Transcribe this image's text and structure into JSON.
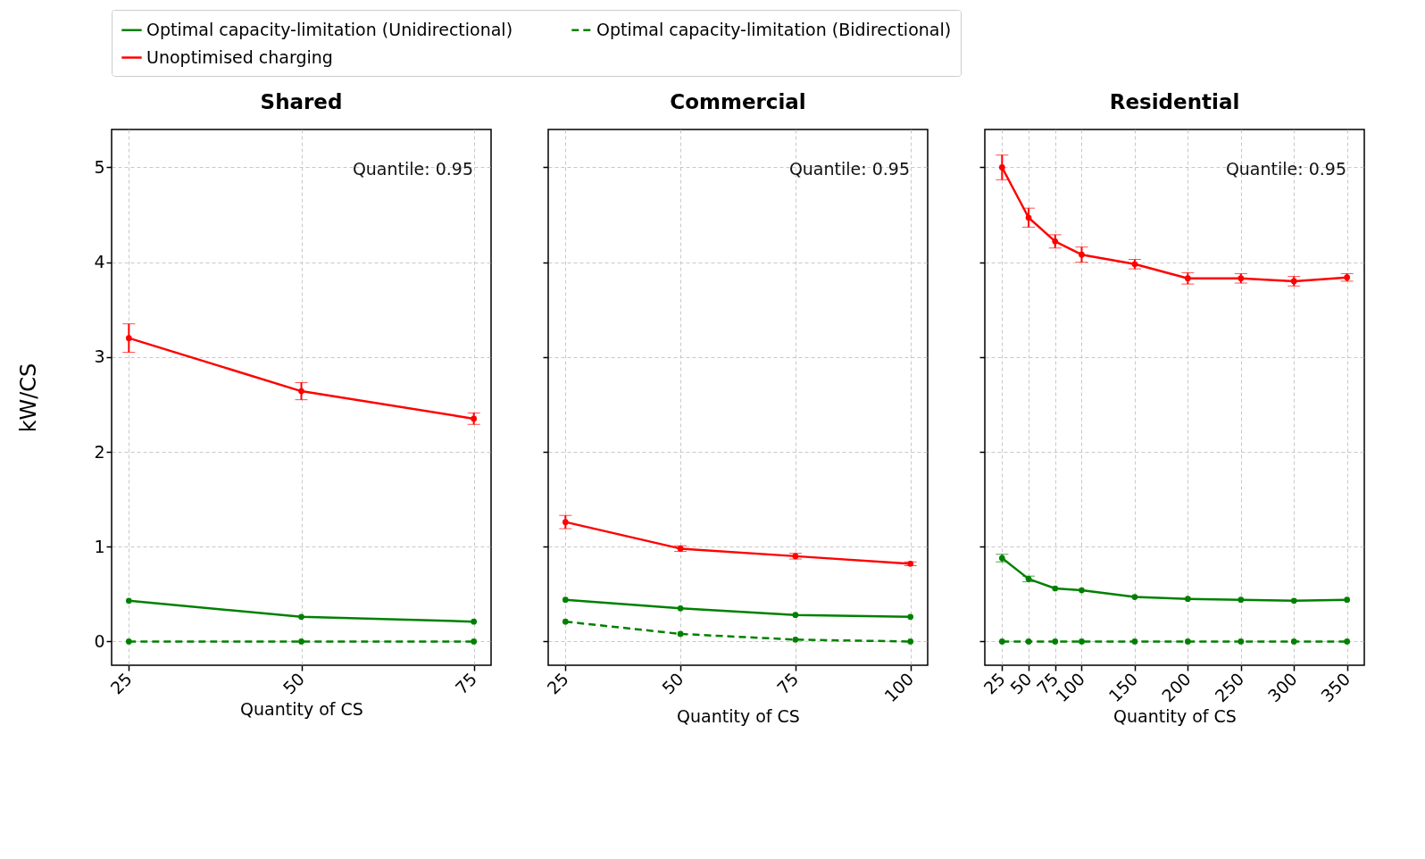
{
  "chart_data": [
    {
      "type": "line",
      "title": "Shared",
      "xlabel": "Quantity of CS",
      "ylabel": "kW/CS",
      "x": [
        25,
        50,
        75
      ],
      "xlim": [
        22.5,
        77.5
      ],
      "xticks": [
        25,
        50,
        75
      ],
      "ylim": [
        -0.25,
        5.4
      ],
      "yticks": [
        0,
        1,
        2,
        3,
        4,
        5
      ],
      "grid": true,
      "marker": "circle",
      "legend": "top",
      "annotations": [
        "Quantile: 0.95"
      ],
      "series": [
        {
          "name": "Optimal capacity-limitation (Unidirectional)",
          "color": "#008000",
          "line_style": "solid",
          "values": [
            0.43,
            0.26,
            0.21
          ]
        },
        {
          "name": "Optimal capacity-limitation (Bidirectional)",
          "color": "#008000",
          "line_style": "dashed",
          "values": [
            0,
            0,
            0
          ]
        },
        {
          "name": "Unoptimised charging",
          "color": "#ff0000",
          "line_style": "solid",
          "values": [
            3.2,
            2.64,
            2.35
          ],
          "errors": [
            0.15,
            0.09,
            0.06
          ]
        }
      ]
    },
    {
      "type": "line",
      "title": "Commercial",
      "xlabel": "Quantity of CS",
      "x": [
        25,
        50,
        75,
        100
      ],
      "xlim": [
        21.25,
        103.75
      ],
      "xticks": [
        25,
        50,
        75,
        100
      ],
      "ylim": [
        -0.25,
        5.4
      ],
      "yticks": [
        0,
        1,
        2,
        3,
        4,
        5
      ],
      "grid": true,
      "marker": "circle",
      "tick_labels": "x",
      "annotations": [
        "Quantile: 0.95"
      ],
      "series": [
        {
          "name": "Optimal capacity-limitation (Unidirectional)",
          "color": "#008000",
          "line_style": "solid",
          "values": [
            0.44,
            0.35,
            0.28,
            0.26
          ]
        },
        {
          "name": "Optimal capacity-limitation (Bidirectional)",
          "color": "#008000",
          "line_style": "dashed",
          "values": [
            0.21,
            0.08,
            0.02,
            0
          ]
        },
        {
          "name": "Unoptimised charging",
          "color": "#ff0000",
          "line_style": "solid",
          "values": [
            1.26,
            0.98,
            0.9,
            0.82
          ],
          "errors": [
            0.07,
            0.03,
            0.03,
            0.02
          ]
        }
      ]
    },
    {
      "type": "line",
      "title": "Residential",
      "xlabel": "Quantity of CS",
      "x": [
        25,
        50,
        75,
        100,
        150,
        200,
        250,
        300,
        350
      ],
      "xlim": [
        8.75,
        366.25
      ],
      "xticks": [
        25,
        50,
        75,
        100,
        150,
        200,
        250,
        300,
        350
      ],
      "ylim": [
        -0.25,
        5.4
      ],
      "yticks": [
        0,
        1,
        2,
        3,
        4,
        5
      ],
      "grid": true,
      "marker": "circle",
      "tick_labels": "x",
      "annotations": [
        "Quantile: 0.95"
      ],
      "series": [
        {
          "name": "Optimal capacity-limitation (Unidirectional)",
          "color": "#008000",
          "line_style": "solid",
          "values": [
            0.88,
            0.66,
            0.56,
            0.54,
            0.47,
            0.45,
            0.44,
            0.43,
            0.44
          ],
          "errors": [
            0.04,
            0.03,
            null,
            null,
            null,
            null,
            null,
            null,
            null
          ]
        },
        {
          "name": "Optimal capacity-limitation (Bidirectional)",
          "color": "#008000",
          "line_style": "dashed",
          "values": [
            0,
            0,
            0,
            0,
            0,
            0,
            0,
            0,
            0
          ]
        },
        {
          "name": "Unoptimised charging",
          "color": "#ff0000",
          "line_style": "solid",
          "values": [
            5.0,
            4.47,
            4.22,
            4.08,
            3.98,
            3.83,
            3.83,
            3.8,
            3.84
          ],
          "errors": [
            0.13,
            0.1,
            0.07,
            0.08,
            0.05,
            0.06,
            0.05,
            0.05,
            0.04
          ]
        }
      ]
    }
  ]
}
